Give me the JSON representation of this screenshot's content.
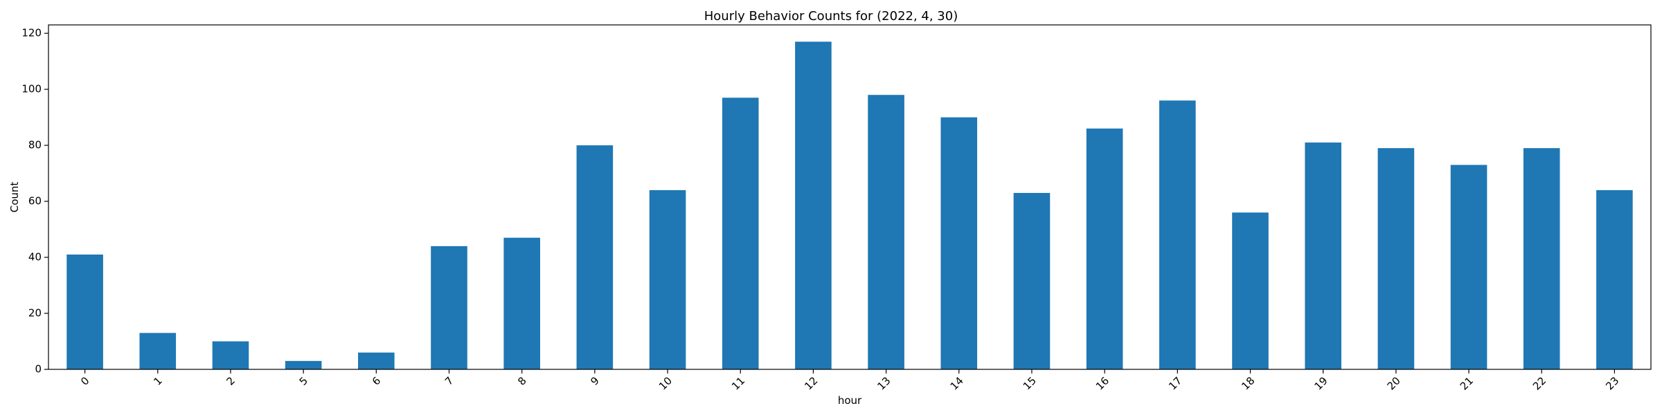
{
  "chart_data": {
    "type": "bar",
    "title": "Hourly Behavior Counts for (2022, 4, 30)",
    "xlabel": "hour",
    "ylabel": "Count",
    "categories": [
      "0",
      "1",
      "2",
      "5",
      "6",
      "7",
      "8",
      "9",
      "10",
      "11",
      "12",
      "13",
      "14",
      "15",
      "16",
      "17",
      "18",
      "19",
      "20",
      "21",
      "22",
      "23"
    ],
    "values": [
      41,
      13,
      10,
      3,
      6,
      44,
      47,
      80,
      64,
      97,
      117,
      98,
      90,
      63,
      86,
      96,
      56,
      81,
      79,
      73,
      79,
      64
    ],
    "ylim": [
      0,
      123
    ],
    "yticks": [
      0,
      20,
      40,
      60,
      80,
      100,
      120
    ],
    "ytick_labels": [
      "0",
      "20",
      "40",
      "60",
      "80",
      "100",
      "120"
    ],
    "grid": false,
    "legend": "none",
    "bar_color": "#1f77b4",
    "xtick_rotation_deg": 45
  }
}
